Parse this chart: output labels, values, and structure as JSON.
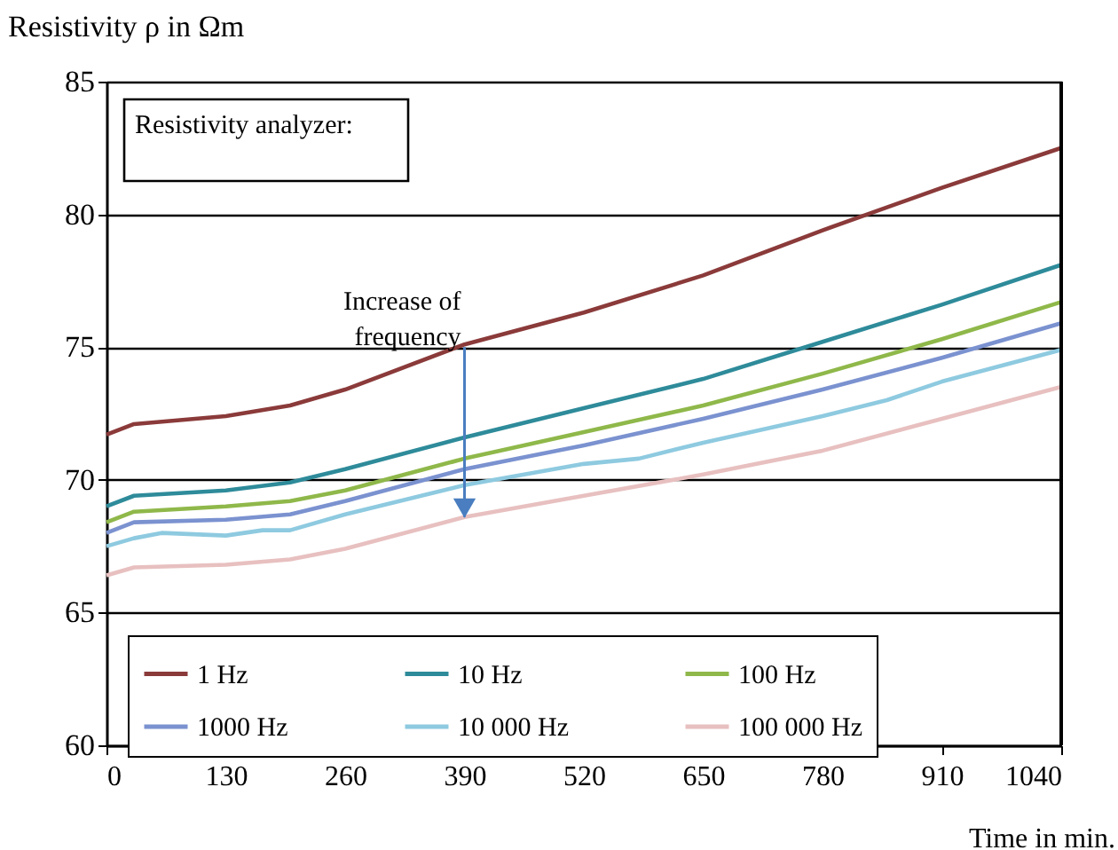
{
  "chart_data": {
    "type": "line",
    "ylabel": "Resistivity ρ in Ωm",
    "xlabel": "Time in min.",
    "x": [
      0,
      30,
      130,
      200,
      260,
      390,
      520,
      650,
      780,
      910,
      1040
    ],
    "series": [
      {
        "name": "1 Hz",
        "color": "#8b3a3a",
        "values": [
          71.7,
          72.1,
          72.4,
          72.8,
          73.4,
          75.1,
          76.3,
          77.7,
          79.4,
          81.0,
          82.5
        ]
      },
      {
        "name": "10 Hz",
        "color": "#2e8b9a",
        "values": [
          69.0,
          69.4,
          69.6,
          69.9,
          70.4,
          71.6,
          72.7,
          73.8,
          75.2,
          76.6,
          78.1
        ]
      },
      {
        "name": "100 Hz",
        "color": "#8fb84a",
        "values": [
          68.4,
          68.8,
          69.0,
          69.2,
          69.6,
          70.8,
          71.8,
          72.8,
          74.0,
          75.3,
          76.7
        ]
      },
      {
        "name": "1000 Hz",
        "color": "#7b92d0",
        "values": [
          68.0,
          68.4,
          68.5,
          68.7,
          69.2,
          70.4,
          71.3,
          72.3,
          73.4,
          74.6,
          75.9
        ]
      },
      {
        "name": "10 000 Hz",
        "color": "#8ecae0",
        "x": [
          0,
          30,
          60,
          130,
          170,
          200,
          260,
          390,
          520,
          580,
          650,
          780,
          850,
          910,
          1040
        ],
        "values": [
          67.5,
          67.8,
          68.0,
          67.9,
          68.1,
          68.1,
          68.7,
          69.8,
          70.6,
          70.8,
          71.4,
          72.4,
          73.0,
          73.7,
          74.9
        ]
      },
      {
        "name": "100 000 Hz",
        "color": "#e8c0c0",
        "values": [
          66.4,
          66.7,
          66.8,
          67.0,
          67.4,
          68.6,
          69.4,
          70.2,
          71.1,
          72.3,
          73.5
        ]
      }
    ],
    "xlim": [
      0,
      1040
    ],
    "xticks": [
      0,
      130,
      260,
      390,
      520,
      650,
      780,
      910,
      1040
    ],
    "ylim": [
      60,
      85
    ],
    "yticks": [
      60,
      65,
      70,
      75,
      80,
      85
    ],
    "grid": "y",
    "legend": "bottom",
    "line_style": "solid",
    "marker": "none",
    "annotations": [
      "Resistivity analyzer:",
      {
        "text": "Increase of frequency",
        "x": 390,
        "y": 75
      }
    ]
  }
}
